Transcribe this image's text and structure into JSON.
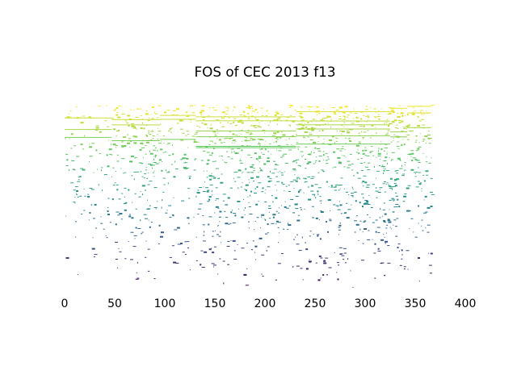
{
  "chart_data": {
    "type": "scatter",
    "title": "FOS of CEC 2013 f13",
    "xlabel": "",
    "ylabel": "",
    "xlim": [
      0,
      400
    ],
    "xticks": [
      "0",
      "50",
      "100",
      "150",
      "200",
      "250",
      "300",
      "350",
      "400"
    ],
    "y_axis_visible": false,
    "grid": false,
    "colormap": [
      "#440154",
      "#3b528b",
      "#21918c",
      "#5ec962",
      "#fde725"
    ],
    "segments": [
      {
        "x_start": 0,
        "x_end": 47,
        "density": "sparse"
      },
      {
        "x_start": 47,
        "x_end": 95,
        "density": "medium"
      },
      {
        "x_start": 95,
        "x_end": 131,
        "density": "sparse"
      },
      {
        "x_start": 131,
        "x_end": 231,
        "density": "dense"
      },
      {
        "x_start": 231,
        "x_end": 325,
        "density": "dense"
      },
      {
        "x_start": 325,
        "x_end": 342,
        "density": "sparse"
      },
      {
        "x_start": 342,
        "x_end": 366,
        "density": "sparse"
      }
    ],
    "x_range_of_data": [
      0,
      366
    ]
  }
}
